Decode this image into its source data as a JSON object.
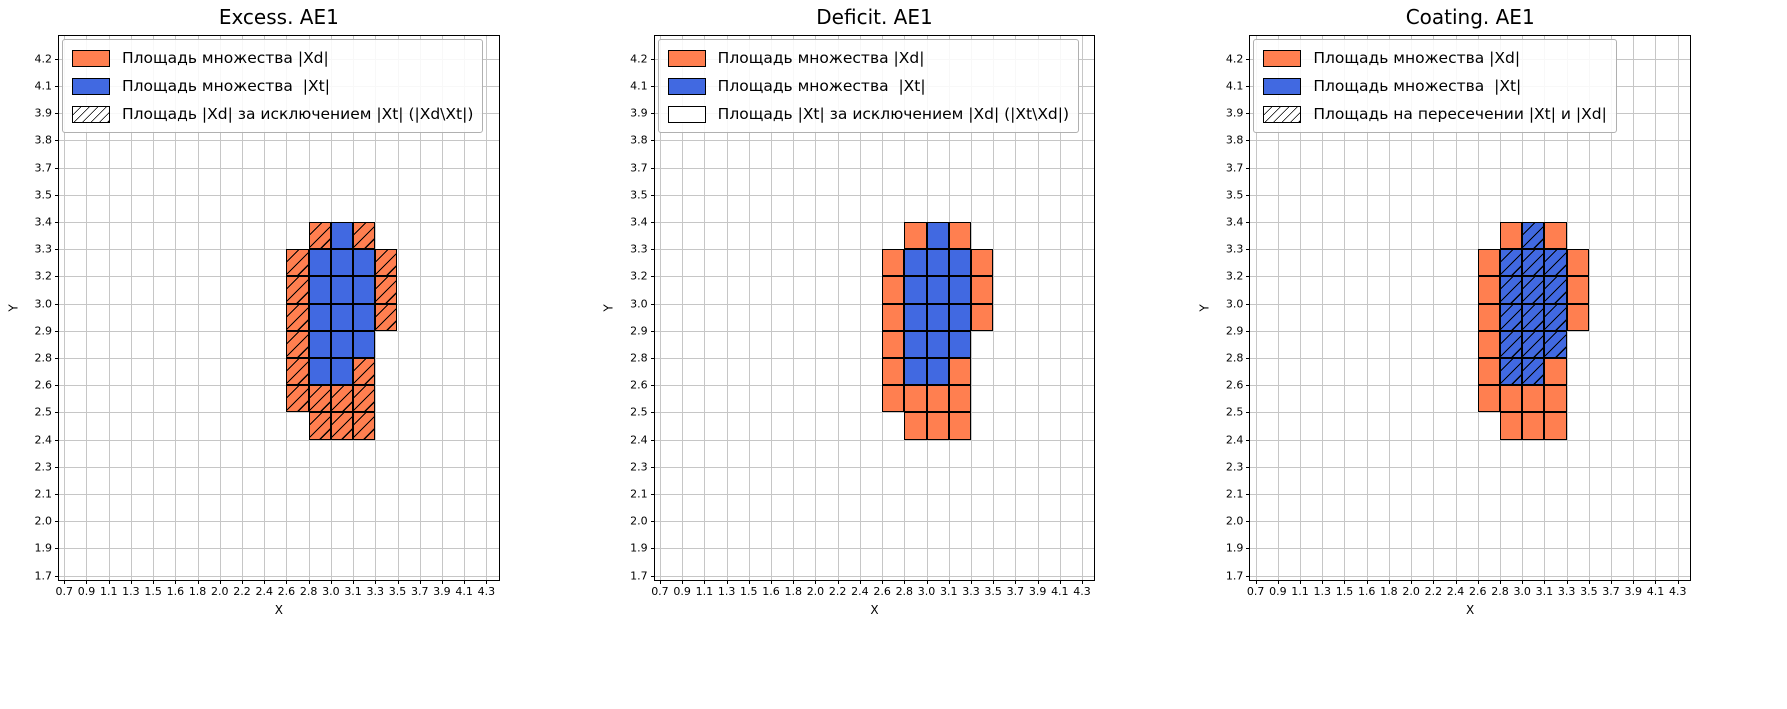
{
  "chart_data": {
    "type": "heatmap",
    "description": "Three grid subplots comparing set |Xd| (orange cells) with set |Xt| (blue cells); hatching marks the set named in each third legend entry.",
    "x_label": "X",
    "y_label": "Y",
    "x_tick_labels": [
      "0.7",
      "0.9",
      "1.1",
      "1.3",
      "1.5",
      "1.6",
      "1.8",
      "2.0",
      "2.2",
      "2.4",
      "2.6",
      "2.8",
      "3.0",
      "3.1",
      "3.3",
      "3.5",
      "3.7",
      "3.9",
      "4.1",
      "4.3"
    ],
    "y_tick_labels": [
      "4.2",
      "4.1",
      "3.9",
      "3.8",
      "3.7",
      "3.5",
      "3.4",
      "3.3",
      "3.2",
      "3.0",
      "2.9",
      "2.8",
      "2.6",
      "2.5",
      "2.4",
      "2.3",
      "2.1",
      "2.0",
      "1.9",
      "1.7"
    ],
    "colors": {
      "xd": "#ff7f50",
      "xt": "#4169e1",
      "grid": "#c6c6c6",
      "hatch": "#000000"
    },
    "col_x_ranges": {
      "10": "2.6-2.8",
      "11": "2.8-3.0",
      "12": "3.0-3.1",
      "13": "3.1-3.3",
      "14": "3.3-3.5"
    },
    "row_y_ranges": {
      "6": "3.3-3.4",
      "7": "3.2-3.3",
      "8": "3.0-3.2",
      "9": "2.9-3.0",
      "10": "2.8-2.9",
      "11": "2.6-2.8",
      "12": "2.5-2.6",
      "13": "2.4-2.5"
    },
    "cells": [
      {
        "col": 11,
        "row": 6,
        "set": "xd"
      },
      {
        "col": 12,
        "row": 6,
        "set": "xt"
      },
      {
        "col": 13,
        "row": 6,
        "set": "xd"
      },
      {
        "col": 10,
        "row": 7,
        "set": "xd"
      },
      {
        "col": 11,
        "row": 7,
        "set": "xt"
      },
      {
        "col": 12,
        "row": 7,
        "set": "xt"
      },
      {
        "col": 13,
        "row": 7,
        "set": "xt"
      },
      {
        "col": 14,
        "row": 7,
        "set": "xd"
      },
      {
        "col": 10,
        "row": 8,
        "set": "xd"
      },
      {
        "col": 11,
        "row": 8,
        "set": "xt"
      },
      {
        "col": 12,
        "row": 8,
        "set": "xt"
      },
      {
        "col": 13,
        "row": 8,
        "set": "xt"
      },
      {
        "col": 14,
        "row": 8,
        "set": "xd"
      },
      {
        "col": 10,
        "row": 9,
        "set": "xd"
      },
      {
        "col": 11,
        "row": 9,
        "set": "xt"
      },
      {
        "col": 12,
        "row": 9,
        "set": "xt"
      },
      {
        "col": 13,
        "row": 9,
        "set": "xt"
      },
      {
        "col": 14,
        "row": 9,
        "set": "xd"
      },
      {
        "col": 10,
        "row": 10,
        "set": "xd"
      },
      {
        "col": 11,
        "row": 10,
        "set": "xt"
      },
      {
        "col": 12,
        "row": 10,
        "set": "xt"
      },
      {
        "col": 13,
        "row": 10,
        "set": "xt"
      },
      {
        "col": 10,
        "row": 11,
        "set": "xd"
      },
      {
        "col": 11,
        "row": 11,
        "set": "xt"
      },
      {
        "col": 12,
        "row": 11,
        "set": "xt"
      },
      {
        "col": 13,
        "row": 11,
        "set": "xd"
      },
      {
        "col": 10,
        "row": 12,
        "set": "xd"
      },
      {
        "col": 11,
        "row": 12,
        "set": "xd"
      },
      {
        "col": 12,
        "row": 12,
        "set": "xd"
      },
      {
        "col": 13,
        "row": 12,
        "set": "xd"
      },
      {
        "col": 11,
        "row": 13,
        "set": "xd"
      },
      {
        "col": 12,
        "row": 13,
        "set": "xd"
      },
      {
        "col": 13,
        "row": 13,
        "set": "xd"
      }
    ],
    "panels": [
      {
        "title": "Excess. AE1",
        "hatch_on": "xd",
        "legend": [
          {
            "swatch": "xd",
            "label": "Площадь множества |Xd|"
          },
          {
            "swatch": "xt",
            "label": "Площадь множества  |Xt|"
          },
          {
            "swatch": "hatch",
            "label": "Площадь |Xd| за исключением |Xt| (|Xd\\Xt|)"
          }
        ]
      },
      {
        "title": "Deficit. AE1",
        "hatch_on": "none",
        "legend": [
          {
            "swatch": "xd",
            "label": "Площадь множества |Xd|"
          },
          {
            "swatch": "xt",
            "label": "Площадь множества  |Xt|"
          },
          {
            "swatch": "plain",
            "label": "Площадь |Xt| за исключением |Xd| (|Xt\\Xd|)"
          }
        ]
      },
      {
        "title": "Coating. AE1",
        "hatch_on": "xt",
        "legend": [
          {
            "swatch": "xd",
            "label": "Площадь множества |Xd|"
          },
          {
            "swatch": "xt",
            "label": "Площадь множества  |Xt|"
          },
          {
            "swatch": "hatch",
            "label": "Площадь на пересечении |Xt| и |Xd|"
          }
        ]
      }
    ]
  }
}
